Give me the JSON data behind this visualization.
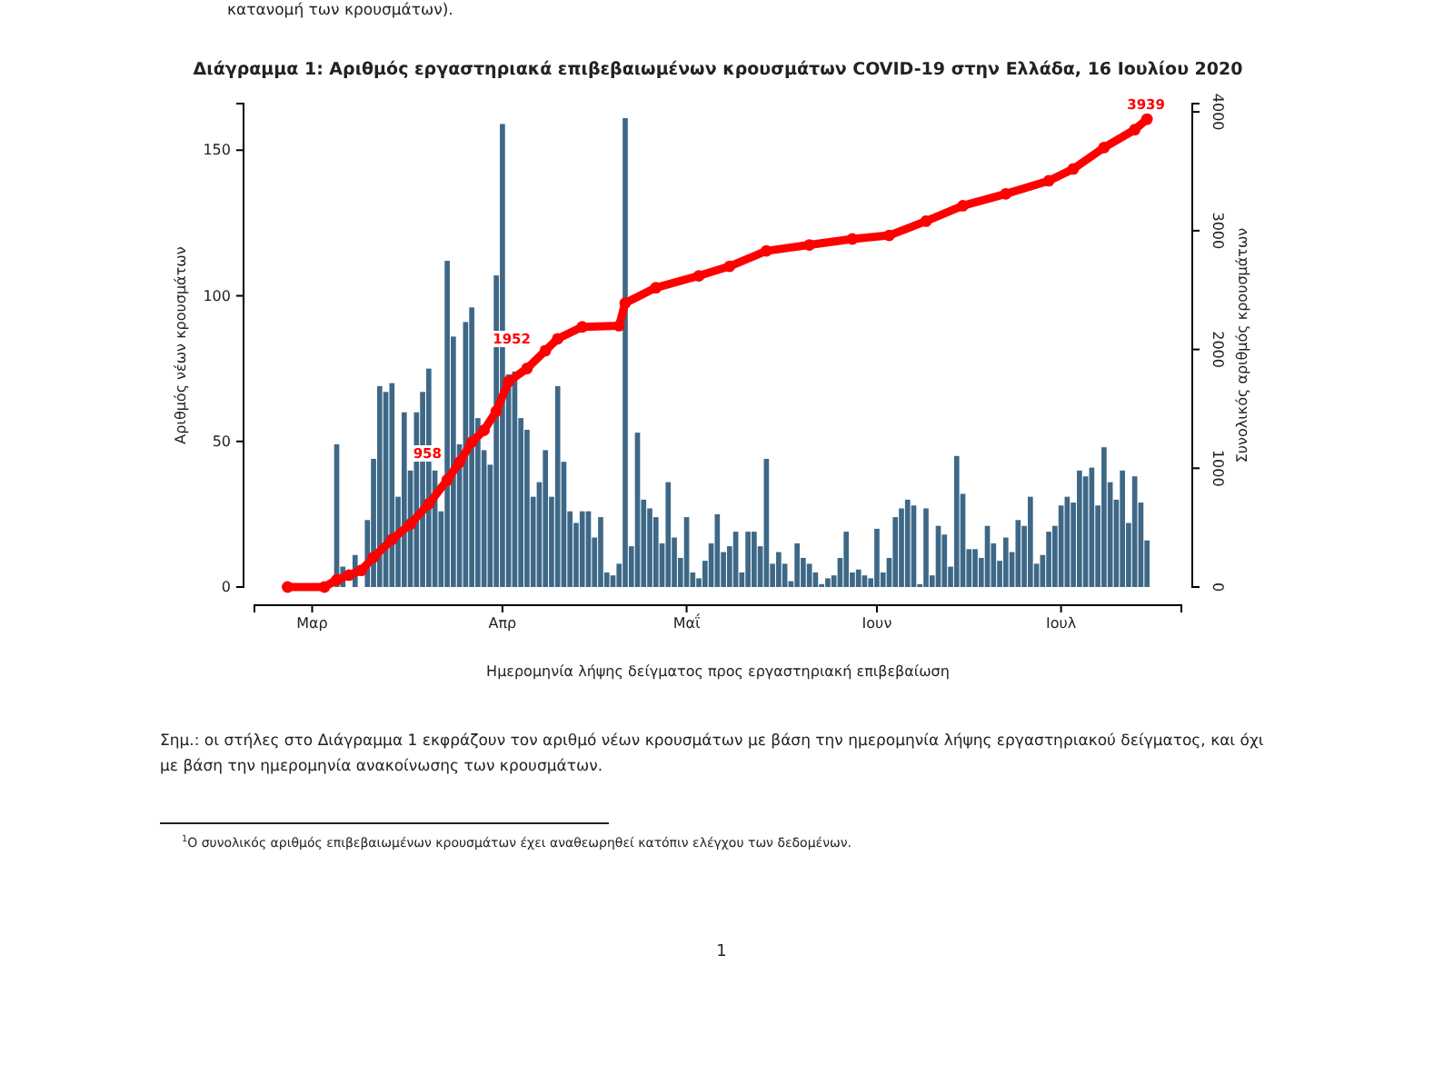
{
  "chart_data": {
    "type": "bar",
    "title": "Διάγραμμα 1: Αριθμός εργαστηριακά επιβεβαιωμένων κρουσμάτων COVID-19 στην Ελλάδα, 16 Ιουλίου 2020",
    "xlabel": "Ημερομηνία λήψης δείγματος προς εργαστηριακή επιβεβαίωση",
    "ylabel": "Αριθμός νέων κρουσμάτων",
    "y2label": "Συνολικός αριθμός κρουσμάτων",
    "categories": [
      null,
      null,
      null,
      null,
      "Μαρ",
      null,
      null,
      null,
      null,
      null,
      null,
      null,
      null,
      null,
      null,
      null,
      null,
      null,
      null,
      null,
      null,
      null,
      null,
      null,
      null,
      null,
      null,
      null,
      null,
      null,
      null,
      null,
      null,
      null,
      null,
      "Απρ",
      null,
      null,
      null,
      null,
      null,
      null,
      null,
      null,
      null,
      null,
      null,
      null,
      null,
      null,
      null,
      null,
      null,
      null,
      null,
      null,
      null,
      null,
      null,
      null,
      null,
      null,
      null,
      null,
      null,
      "Μαΐ",
      null,
      null,
      null,
      null,
      null,
      null,
      null,
      null,
      null,
      null,
      null,
      null,
      null,
      null,
      null,
      null,
      null,
      null,
      null,
      null,
      null,
      null,
      null,
      null,
      null,
      null,
      null,
      null,
      null,
      null,
      "Ιουν",
      null,
      null,
      null,
      null,
      null,
      null,
      null,
      null,
      null,
      null,
      null,
      null,
      null,
      null,
      null,
      null,
      null,
      null,
      null,
      null,
      null,
      null,
      null,
      null,
      null,
      null,
      null,
      null,
      null,
      "Ιουλ",
      null,
      null,
      null,
      null,
      null,
      null,
      null,
      null,
      null,
      null,
      null,
      null,
      null,
      null
    ],
    "ylim": [
      0,
      166
    ],
    "yticks": [
      0,
      50,
      100,
      150
    ],
    "y2lim": [
      0,
      4070
    ],
    "y2ticks": [
      0,
      1000,
      2000,
      3000,
      4000
    ],
    "grid": false,
    "legend": false,
    "series": [
      {
        "color": "#3e6887",
        "values": [
          null,
          null,
          null,
          0,
          0,
          0,
          null,
          null,
          49,
          7,
          null,
          11,
          null,
          23,
          44,
          69,
          67,
          70,
          31,
          60,
          40,
          60,
          67,
          75,
          40,
          26,
          112,
          86,
          49,
          91,
          96,
          58,
          47,
          42,
          107,
          159,
          73,
          74,
          58,
          54,
          31,
          36,
          47,
          31,
          69,
          43,
          26,
          22,
          26,
          26,
          17,
          24,
          5,
          4,
          8,
          161,
          14,
          53,
          30,
          27,
          24,
          15,
          36,
          17,
          10,
          24,
          5,
          3,
          9,
          15,
          25,
          12,
          14,
          19,
          5,
          19,
          19,
          14,
          44,
          8,
          12,
          8,
          2,
          15,
          10,
          8,
          5,
          1,
          3,
          4,
          10,
          19,
          5,
          6,
          4,
          3,
          20,
          5,
          10,
          24,
          27,
          30,
          28,
          1,
          27,
          4,
          21,
          18,
          7,
          45,
          32,
          13,
          13,
          10,
          21,
          15,
          9,
          17,
          12,
          23,
          21,
          31,
          8,
          11,
          19,
          21,
          28,
          31,
          29,
          40,
          38,
          41,
          28,
          48,
          36,
          30,
          40,
          22,
          38,
          29,
          16
        ]
      },
      {
        "type": "line",
        "axis": "y2",
        "color": "#ff0000",
        "marker": "circle",
        "values": [
          0,
          null,
          null,
          null,
          null,
          null,
          0,
          null,
          60,
          null,
          100,
          null,
          140,
          null,
          250,
          null,
          null,
          400,
          null,
          null,
          530,
          null,
          null,
          700,
          null,
          null,
          900,
          null,
          1050,
          null,
          1220,
          null,
          1320,
          null,
          1480,
          null,
          1730,
          null,
          null,
          1840,
          null,
          null,
          1990,
          null,
          2090,
          null,
          null,
          null,
          2190,
          null,
          null,
          null,
          null,
          null,
          2200,
          2390,
          null,
          null,
          null,
          null,
          2520,
          null,
          null,
          null,
          null,
          null,
          null,
          2620,
          null,
          null,
          null,
          null,
          2700,
          null,
          null,
          null,
          null,
          null,
          2830,
          null,
          null,
          null,
          null,
          null,
          null,
          2880,
          null,
          null,
          null,
          null,
          null,
          null,
          2930,
          null,
          null,
          null,
          null,
          null,
          2960,
          null,
          null,
          null,
          null,
          null,
          3080,
          null,
          null,
          null,
          null,
          null,
          3210,
          null,
          null,
          null,
          null,
          null,
          null,
          3310,
          null,
          null,
          null,
          null,
          null,
          null,
          3420,
          null,
          null,
          null,
          3520,
          null,
          null,
          null,
          null,
          3700,
          null,
          null,
          null,
          null,
          3850,
          null,
          3939
        ]
      }
    ],
    "annotations": [
      "958",
      "1952",
      "3939",
      "κατανομή των κρουσμάτων).",
      "Σημ.: οι στήλες στο Διάγραμμα 1 εκφράζουν τον αριθμό νέων κρουσμάτων με βάση την ημερομηνία λήψης εργαστηριακού δείγματος, και όχι με βάση την ημερομηνία ανακοίνωσης των κρουσμάτων.",
      "$^{1}$Ο συνολικός αριθμός επιβεβαιωμένων κρουσμάτων έχει αναθεωρηθεί κατόπιν ελέγχου των δεδομένων.",
      "1"
    ]
  }
}
